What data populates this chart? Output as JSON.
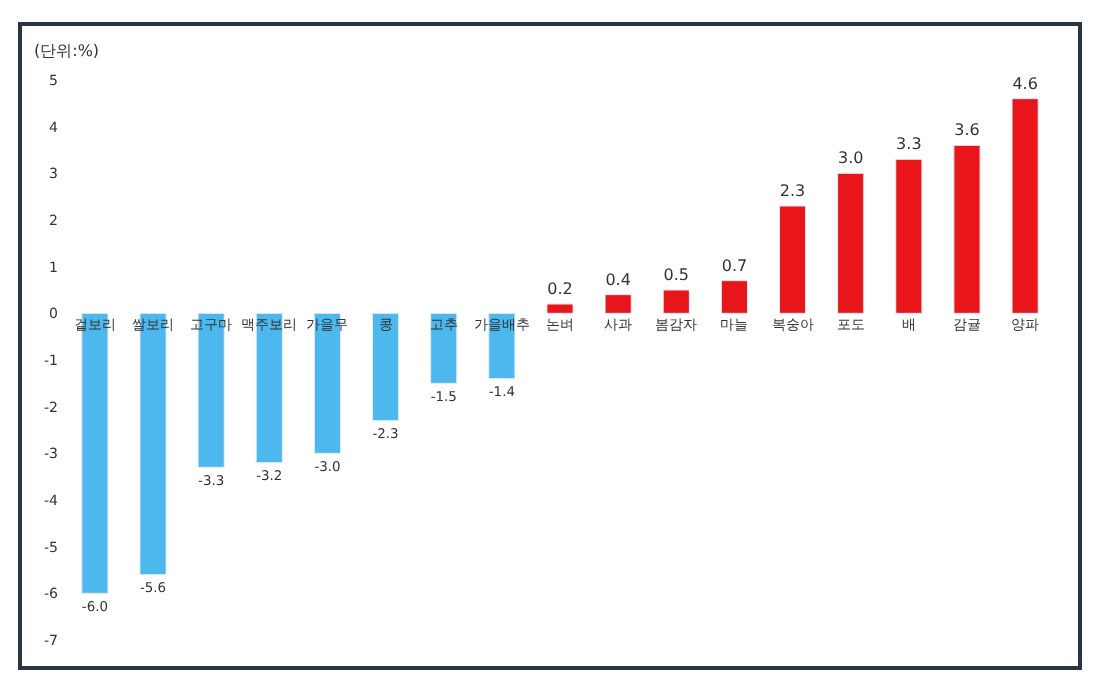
{
  "chart_data": {
    "type": "bar",
    "ylabel": "(단위:%)",
    "categories": [
      "겉보리",
      "쌀보리",
      "고구마",
      "맥주보리",
      "가을무",
      "콩",
      "고추",
      "가을배추",
      "논벼",
      "사과",
      "봄감자",
      "마늘",
      "복숭아",
      "포도",
      "배",
      "감귤",
      "양파"
    ],
    "values": [
      -6.0,
      -5.6,
      -3.3,
      -3.2,
      -3.0,
      -2.3,
      -1.5,
      -1.4,
      0.2,
      0.4,
      0.5,
      0.7,
      2.3,
      3.0,
      3.3,
      3.6,
      4.6
    ],
    "colors": [
      "#4db8ee",
      "#4db8ee",
      "#4db8ee",
      "#4db8ee",
      "#4db8ee",
      "#4db8ee",
      "#4db8ee",
      "#4db8ee",
      "#e8161b",
      "#e8161b",
      "#e8161b",
      "#e8161b",
      "#e8161b",
      "#e8161b",
      "#e8161b",
      "#e8161b",
      "#e8161b"
    ],
    "value_labels": [
      "-6.0",
      "-5.6",
      "-3.3",
      "-3.2",
      "-3.0",
      "-2.3",
      "-1.5",
      "-1.4",
      "0.2",
      "0.4",
      "0.5",
      "0.7",
      "2.3",
      "3.0",
      "3.3",
      "3.6",
      "4.6"
    ],
    "ylim": [
      -7,
      5
    ],
    "yticks": [
      -7,
      -6,
      -5,
      -4,
      -3,
      -2,
      -1,
      0,
      1,
      2,
      3,
      4,
      5
    ],
    "legend": false
  }
}
